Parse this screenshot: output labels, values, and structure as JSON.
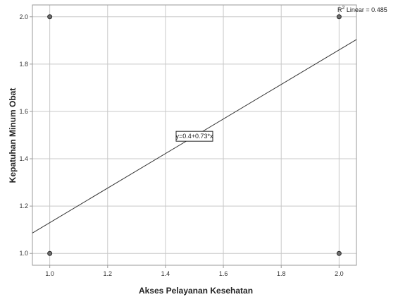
{
  "chart_data": {
    "type": "scatter",
    "xlabel": "Akses Pelayanan Kesehatan",
    "ylabel": "Kepatuhan Minum Obat",
    "xlim": [
      0.94,
      2.06
    ],
    "ylim": [
      0.95,
      2.05
    ],
    "x_ticks": [
      "1.0",
      "1.2",
      "1.4",
      "1.6",
      "1.8",
      "2.0"
    ],
    "y_ticks": [
      "1.0",
      "1.2",
      "1.4",
      "1.6",
      "1.8",
      "2.0"
    ],
    "grid": true,
    "points": [
      {
        "x": 1.0,
        "y": 1.0
      },
      {
        "x": 1.0,
        "y": 2.0
      },
      {
        "x": 2.0,
        "y": 1.0
      },
      {
        "x": 2.0,
        "y": 2.0
      }
    ],
    "fit_line": {
      "intercept": 0.4,
      "slope": 0.73
    },
    "equation_label": "y=0.4+0.73*x",
    "r2_prefix": "R",
    "r2_superscript": "2",
    "r2_text": " Linear = 0.485",
    "colors": {
      "grid": "#c8c8c8",
      "frame": "#9a9a9a",
      "line": "#333333",
      "point_fill": "#6e6e6e",
      "point_stroke": "#2b2b2b"
    }
  }
}
